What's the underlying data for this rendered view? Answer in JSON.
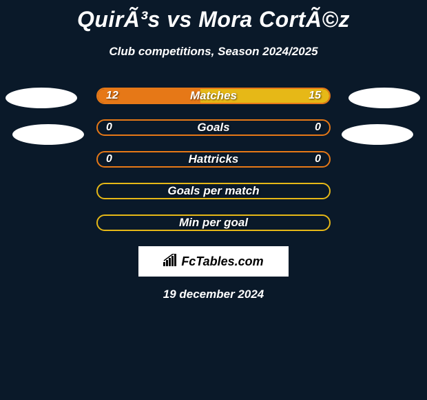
{
  "title": "QuirÃ³s vs Mora CortÃ©z",
  "subtitle": "Club competitions, Season 2024/2025",
  "date": "19 december 2024",
  "logo_text": "FcTables.com",
  "colors": {
    "background": "#0a1929",
    "text": "#ffffff",
    "left_fill": "#e67817",
    "right_fill": "#e6b817",
    "border_orange": "#e67817",
    "border_yellow": "#e6b817",
    "avatar": "#ffffff"
  },
  "bars": [
    {
      "label": "Matches",
      "left_value": "12",
      "right_value": "15",
      "left_pct": 44.4,
      "right_pct": 55.6,
      "show_values": true,
      "border_color": "#e67817",
      "left_fill": "#e67817",
      "right_fill": "#e6b817"
    },
    {
      "label": "Goals",
      "left_value": "0",
      "right_value": "0",
      "left_pct": 0,
      "right_pct": 0,
      "show_values": true,
      "border_color": "#e67817",
      "left_fill": "#e67817",
      "right_fill": "#e6b817"
    },
    {
      "label": "Hattricks",
      "left_value": "0",
      "right_value": "0",
      "left_pct": 0,
      "right_pct": 0,
      "show_values": true,
      "border_color": "#e67817",
      "left_fill": "#e67817",
      "right_fill": "#e6b817"
    },
    {
      "label": "Goals per match",
      "left_value": "",
      "right_value": "",
      "left_pct": 0,
      "right_pct": 0,
      "show_values": false,
      "border_color": "#e6b817",
      "left_fill": "#e67817",
      "right_fill": "#e6b817"
    },
    {
      "label": "Min per goal",
      "left_value": "",
      "right_value": "",
      "left_pct": 0,
      "right_pct": 0,
      "show_values": false,
      "border_color": "#e6b817",
      "left_fill": "#e67817",
      "right_fill": "#e6b817"
    }
  ]
}
